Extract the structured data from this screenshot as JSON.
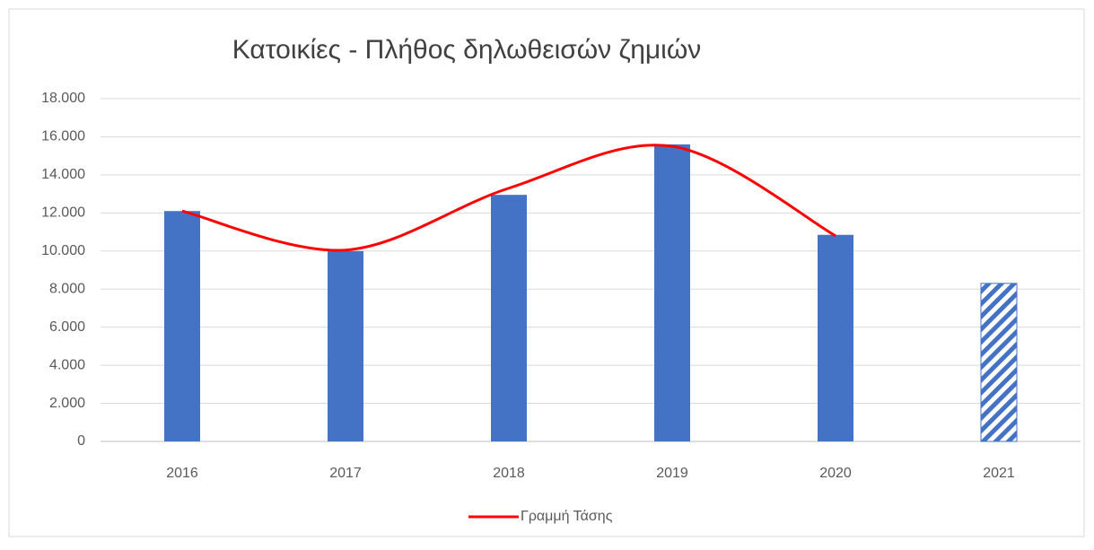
{
  "chart_data": {
    "type": "bar",
    "title": "Κατοικίες -  Πλήθος  δηλωθεισών  ζημιών",
    "categories": [
      "2016",
      "2017",
      "2018",
      "2019",
      "2020",
      "2021"
    ],
    "series": [
      {
        "type": "bar",
        "color": "#4472c4",
        "values": [
          12100,
          10000,
          12950,
          15600,
          10850,
          8300
        ],
        "hatched": [
          false,
          false,
          false,
          false,
          false,
          true
        ]
      },
      {
        "type": "line",
        "name": "Γραμμή Τάσης",
        "color": "#ff0000",
        "values": [
          12100,
          10050,
          13300,
          15500,
          10800,
          null
        ],
        "smooth": true
      }
    ],
    "ylim": [
      0,
      18000
    ],
    "yticks": [
      0,
      {
        "value": 2000,
        "label": "2.000"
      },
      {
        "value": 4000,
        "label": "4.000"
      },
      {
        "value": 6000,
        "label": "6.000"
      },
      {
        "value": 8000,
        "label": "8.000"
      },
      {
        "value": 10000,
        "label": "10.000"
      },
      {
        "value": 12000,
        "label": "12.000"
      },
      {
        "value": 14000,
        "label": "14.000"
      },
      {
        "value": 16000,
        "label": "16.000"
      },
      {
        "value": 18000,
        "label": "18.000"
      }
    ],
    "grid": true,
    "legend": "bottom"
  }
}
